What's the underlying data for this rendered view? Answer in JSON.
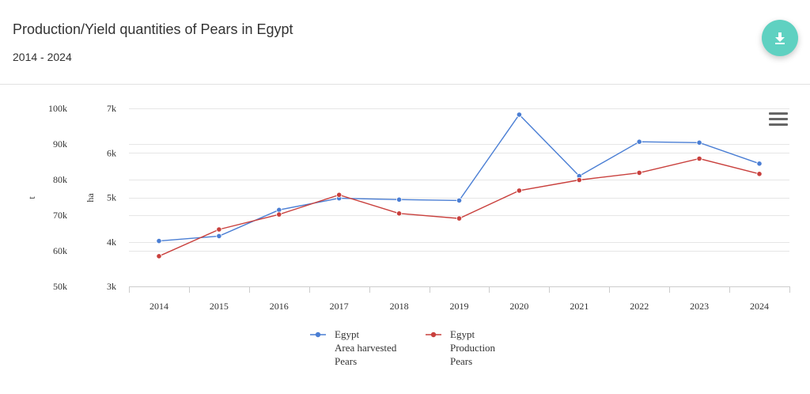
{
  "header": {
    "title": "Production/Yield quantities of Pears in Egypt",
    "subtitle": "2014 - 2024",
    "download_icon": "download-icon",
    "menu_icon": "hamburger-menu-icon"
  },
  "chart_data": {
    "type": "line",
    "x": [
      "2014",
      "2015",
      "2016",
      "2017",
      "2018",
      "2019",
      "2020",
      "2021",
      "2022",
      "2023",
      "2024"
    ],
    "axes": [
      {
        "id": "t",
        "title": "t",
        "ticks": [
          "50k",
          "60k",
          "70k",
          "80k",
          "90k",
          "100k"
        ],
        "range": [
          50000,
          100000
        ]
      },
      {
        "id": "ha",
        "title": "ha",
        "ticks": [
          "3k",
          "4k",
          "5k",
          "6k",
          "7k"
        ],
        "range": [
          3000,
          7000
        ]
      }
    ],
    "series": [
      {
        "name": "Egypt Area harvested Pears",
        "legend_lines": [
          "Egypt",
          "Area harvested",
          "Pears"
        ],
        "axis": "ha",
        "color": "#4a7ed4",
        "values": [
          4020,
          4130,
          4720,
          4980,
          4950,
          4930,
          6860,
          5480,
          6250,
          6230,
          5760
        ]
      },
      {
        "name": "Egypt Production Pears",
        "legend_lines": [
          "Egypt",
          "Production",
          "Pears"
        ],
        "axis": "t",
        "color": "#c9403d",
        "values": [
          58500,
          66000,
          70200,
          75700,
          70500,
          69100,
          76900,
          79900,
          81900,
          85900,
          81600
        ]
      }
    ],
    "grid": true,
    "legend": "bottom-center"
  }
}
